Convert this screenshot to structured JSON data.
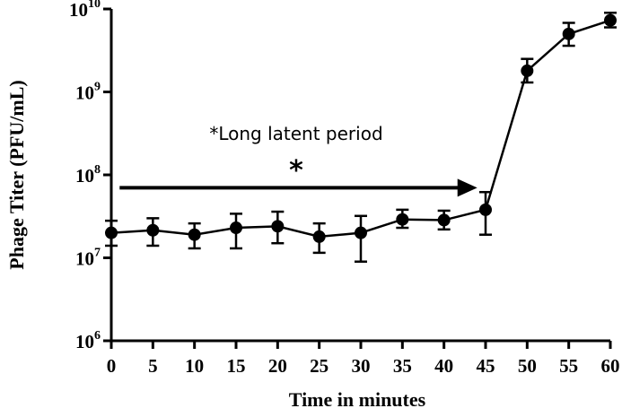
{
  "chart_data": {
    "type": "line",
    "xlabel": "Time in minutes",
    "ylabel": "Phage Titer (PFU/mL)",
    "yscale": "log",
    "xlim": [
      0,
      60
    ],
    "ylim": [
      1000000,
      10000000000
    ],
    "x_ticks": [
      "0",
      "5",
      "10",
      "15",
      "20",
      "25",
      "30",
      "35",
      "40",
      "45",
      "50",
      "55",
      "60"
    ],
    "y_ticks": [
      {
        "base": "10",
        "exp": "6"
      },
      {
        "base": "10",
        "exp": "7"
      },
      {
        "base": "10",
        "exp": "8"
      },
      {
        "base": "10",
        "exp": "9"
      },
      {
        "base": "10",
        "exp": "10"
      }
    ],
    "series": [
      {
        "x": [
          0,
          5,
          10,
          15,
          20,
          25,
          30,
          35,
          40,
          45,
          50,
          55,
          60
        ],
        "y": [
          20000000,
          21500000,
          19000000,
          23000000,
          24000000,
          18000000,
          20000000,
          29000000,
          28500000,
          38000000,
          1800000000,
          5000000000,
          7300000000
        ],
        "err_low": [
          14000000,
          14000000,
          13000000,
          13000000,
          15000000,
          11500000,
          9000000,
          23000000,
          22000000,
          19000000,
          1300000000,
          3600000000,
          6000000000
        ],
        "err_high": [
          28000000,
          30000000,
          26000000,
          34000000,
          36000000,
          26000000,
          32000000,
          38000000,
          37000000,
          62000000,
          2500000000,
          6800000000,
          9000000000
        ]
      }
    ],
    "annotations": {
      "text": "*Long latent period",
      "star": "*",
      "arrow_from_x": 1,
      "arrow_to_x": 44,
      "arrow_y": 70000000
    },
    "grid": false,
    "legend": "none"
  }
}
